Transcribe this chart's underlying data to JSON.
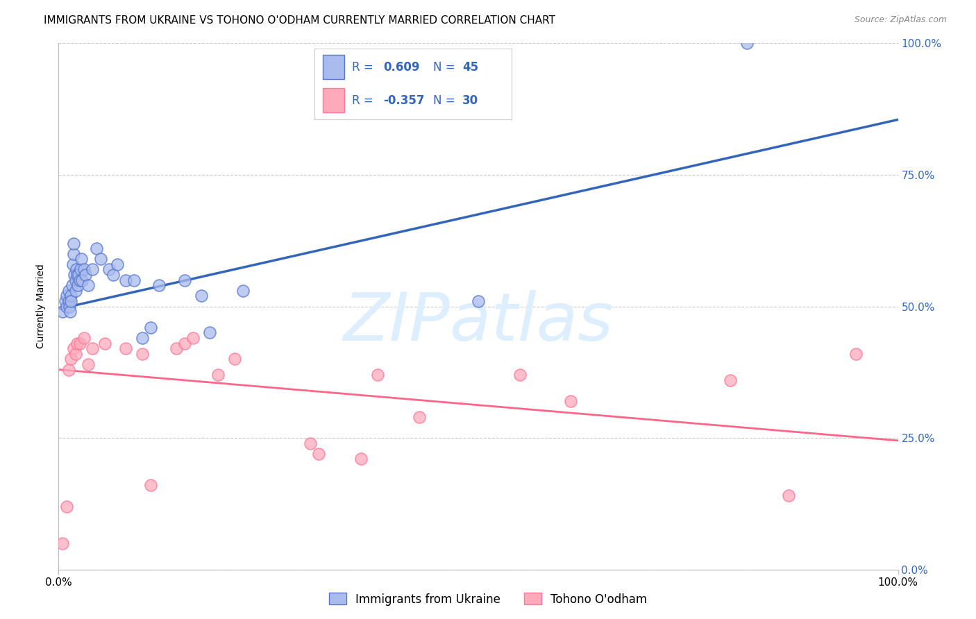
{
  "title": "IMMIGRANTS FROM UKRAINE VS TOHONO O'ODHAM CURRENTLY MARRIED CORRELATION CHART",
  "source": "Source: ZipAtlas.com",
  "ylabel": "Currently Married",
  "y_tick_labels": [
    "0.0%",
    "25.0%",
    "50.0%",
    "75.0%",
    "100.0%"
  ],
  "y_tick_values": [
    0.0,
    0.25,
    0.5,
    0.75,
    1.0
  ],
  "legend_label_blue": "Immigrants from Ukraine",
  "legend_label_pink": "Tohono O'odham",
  "blue_fill_color": "#AABBEE",
  "pink_fill_color": "#FFAABB",
  "blue_edge_color": "#5577CC",
  "pink_edge_color": "#FF7799",
  "blue_line_color": "#3366BB",
  "pink_line_color": "#FF6688",
  "legend_text_color": "#3366BB",
  "right_axis_color": "#3366BB",
  "watermark_text": "ZIPatlas",
  "watermark_color": "#DDEEFF",
  "blue_scatter_x": [
    0.005,
    0.008,
    0.01,
    0.01,
    0.012,
    0.012,
    0.013,
    0.014,
    0.015,
    0.015,
    0.016,
    0.017,
    0.018,
    0.018,
    0.019,
    0.02,
    0.02,
    0.021,
    0.022,
    0.023,
    0.024,
    0.025,
    0.026,
    0.027,
    0.028,
    0.03,
    0.032,
    0.035,
    0.04,
    0.045,
    0.05,
    0.06,
    0.065,
    0.07,
    0.08,
    0.09,
    0.1,
    0.11,
    0.12,
    0.15,
    0.17,
    0.18,
    0.22,
    0.5,
    0.82
  ],
  "blue_scatter_y": [
    0.49,
    0.51,
    0.52,
    0.5,
    0.53,
    0.51,
    0.5,
    0.49,
    0.52,
    0.51,
    0.54,
    0.58,
    0.6,
    0.62,
    0.56,
    0.55,
    0.53,
    0.57,
    0.56,
    0.54,
    0.56,
    0.55,
    0.57,
    0.59,
    0.55,
    0.57,
    0.56,
    0.54,
    0.57,
    0.61,
    0.59,
    0.57,
    0.56,
    0.58,
    0.55,
    0.55,
    0.44,
    0.46,
    0.54,
    0.55,
    0.52,
    0.45,
    0.53,
    0.51,
    1.0
  ],
  "pink_scatter_x": [
    0.005,
    0.01,
    0.012,
    0.015,
    0.018,
    0.02,
    0.022,
    0.025,
    0.03,
    0.035,
    0.04,
    0.055,
    0.08,
    0.1,
    0.11,
    0.14,
    0.15,
    0.16,
    0.19,
    0.21,
    0.3,
    0.31,
    0.36,
    0.38,
    0.43,
    0.55,
    0.61,
    0.8,
    0.87,
    0.95
  ],
  "pink_scatter_y": [
    0.05,
    0.12,
    0.38,
    0.4,
    0.42,
    0.41,
    0.43,
    0.43,
    0.44,
    0.39,
    0.42,
    0.43,
    0.42,
    0.41,
    0.16,
    0.42,
    0.43,
    0.44,
    0.37,
    0.4,
    0.24,
    0.22,
    0.21,
    0.37,
    0.29,
    0.37,
    0.32,
    0.36,
    0.14,
    0.41
  ],
  "blue_trendline_x": [
    0.0,
    1.0
  ],
  "blue_trendline_y": [
    0.495,
    0.855
  ],
  "pink_trendline_x": [
    0.0,
    1.0
  ],
  "pink_trendline_y": [
    0.38,
    0.245
  ],
  "xlim": [
    0.0,
    1.0
  ],
  "ylim": [
    0.0,
    1.0
  ],
  "grid_color": "#CCCCCC",
  "background_color": "#FFFFFF",
  "title_fontsize": 11,
  "source_fontsize": 9,
  "tick_fontsize": 11,
  "ylabel_fontsize": 10
}
